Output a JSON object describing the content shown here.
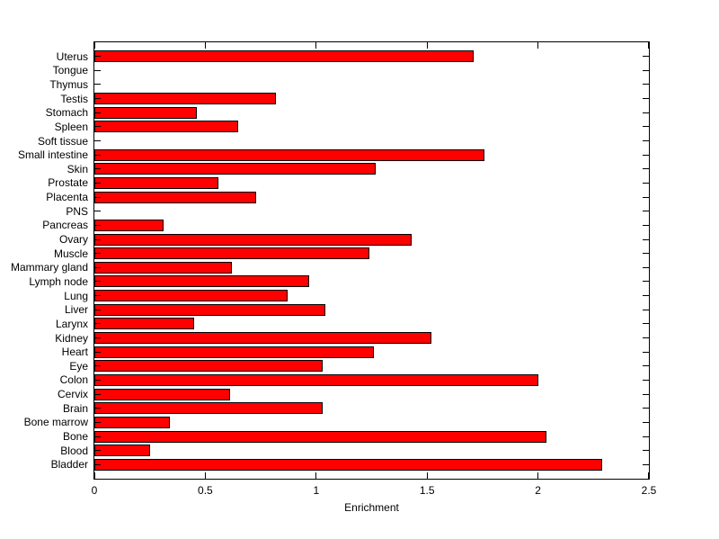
{
  "figure": {
    "background_color": "#FFFFFF"
  },
  "chart_data": {
    "type": "bar",
    "orientation": "horizontal",
    "title": "",
    "xlabel": "Enrichment",
    "ylabel": "",
    "xlim": [
      0,
      2.5
    ],
    "xtick_labels": [
      "0",
      "0.5",
      "1",
      "1.5",
      "2",
      "2.5"
    ],
    "xtick_values": [
      0,
      0.5,
      1,
      1.5,
      2,
      2.5
    ],
    "grid": false,
    "bar_color": "#FF0000",
    "bar_edge_color": "#000000",
    "axis_color": "#000000",
    "categories_top_to_bottom": [
      "Uterus",
      "Tongue",
      "Thymus",
      "Testis",
      "Stomach",
      "Spleen",
      "Soft tissue",
      "Small intestine",
      "Skin",
      "Prostate",
      "Placenta",
      "PNS",
      "Pancreas",
      "Ovary",
      "Muscle",
      "Mammary gland",
      "Lymph node",
      "Lung",
      "Liver",
      "Larynx",
      "Kidney",
      "Heart",
      "Eye",
      "Colon",
      "Cervix",
      "Brain",
      "Bone marrow",
      "Bone",
      "Blood",
      "Bladder"
    ],
    "values": [
      1.71,
      0,
      0,
      0.82,
      0.46,
      0.65,
      0,
      1.76,
      1.27,
      0.56,
      0.73,
      0,
      0.31,
      1.43,
      1.24,
      0.62,
      0.97,
      0.87,
      1.04,
      0.45,
      1.52,
      1.26,
      1.03,
      2.0,
      0.61,
      1.03,
      0.34,
      2.04,
      0.25,
      2.29
    ]
  }
}
